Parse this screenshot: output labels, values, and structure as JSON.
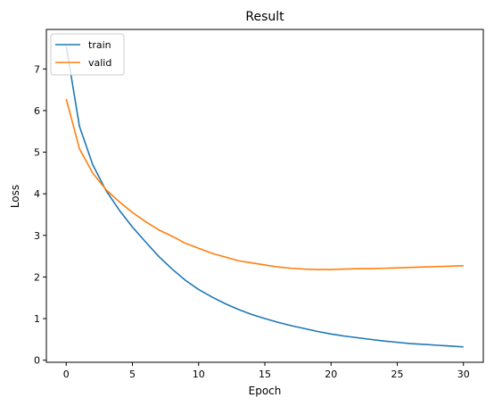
{
  "chart_data": {
    "type": "line",
    "title": "Result",
    "xlabel": "Epoch",
    "ylabel": "Loss",
    "xlim": [
      -1.5,
      31.5
    ],
    "ylim": [
      -0.05,
      7.95
    ],
    "xticks": [
      0,
      5,
      10,
      15,
      20,
      25,
      30
    ],
    "yticks": [
      0,
      1,
      2,
      3,
      4,
      5,
      6,
      7
    ],
    "grid": false,
    "legend_position": "top-left",
    "x": [
      0,
      1,
      2,
      3,
      4,
      5,
      6,
      7,
      8,
      9,
      10,
      11,
      12,
      13,
      14,
      15,
      16,
      17,
      18,
      19,
      20,
      21,
      22,
      23,
      24,
      25,
      26,
      27,
      28,
      29,
      30
    ],
    "series": [
      {
        "name": "train",
        "color": "#1f77b4",
        "values": [
          7.55,
          5.62,
          4.7,
          4.08,
          3.61,
          3.2,
          2.84,
          2.49,
          2.19,
          1.92,
          1.7,
          1.52,
          1.36,
          1.22,
          1.1,
          1.0,
          0.91,
          0.83,
          0.76,
          0.69,
          0.63,
          0.58,
          0.54,
          0.5,
          0.46,
          0.43,
          0.4,
          0.38,
          0.36,
          0.34,
          0.32
        ]
      },
      {
        "name": "valid",
        "color": "#ff7f0e",
        "values": [
          6.28,
          5.08,
          4.5,
          4.1,
          3.81,
          3.55,
          3.33,
          3.13,
          2.98,
          2.81,
          2.69,
          2.57,
          2.48,
          2.39,
          2.34,
          2.29,
          2.24,
          2.21,
          2.19,
          2.18,
          2.18,
          2.19,
          2.2,
          2.2,
          2.21,
          2.22,
          2.23,
          2.24,
          2.25,
          2.26,
          2.27
        ]
      }
    ]
  }
}
